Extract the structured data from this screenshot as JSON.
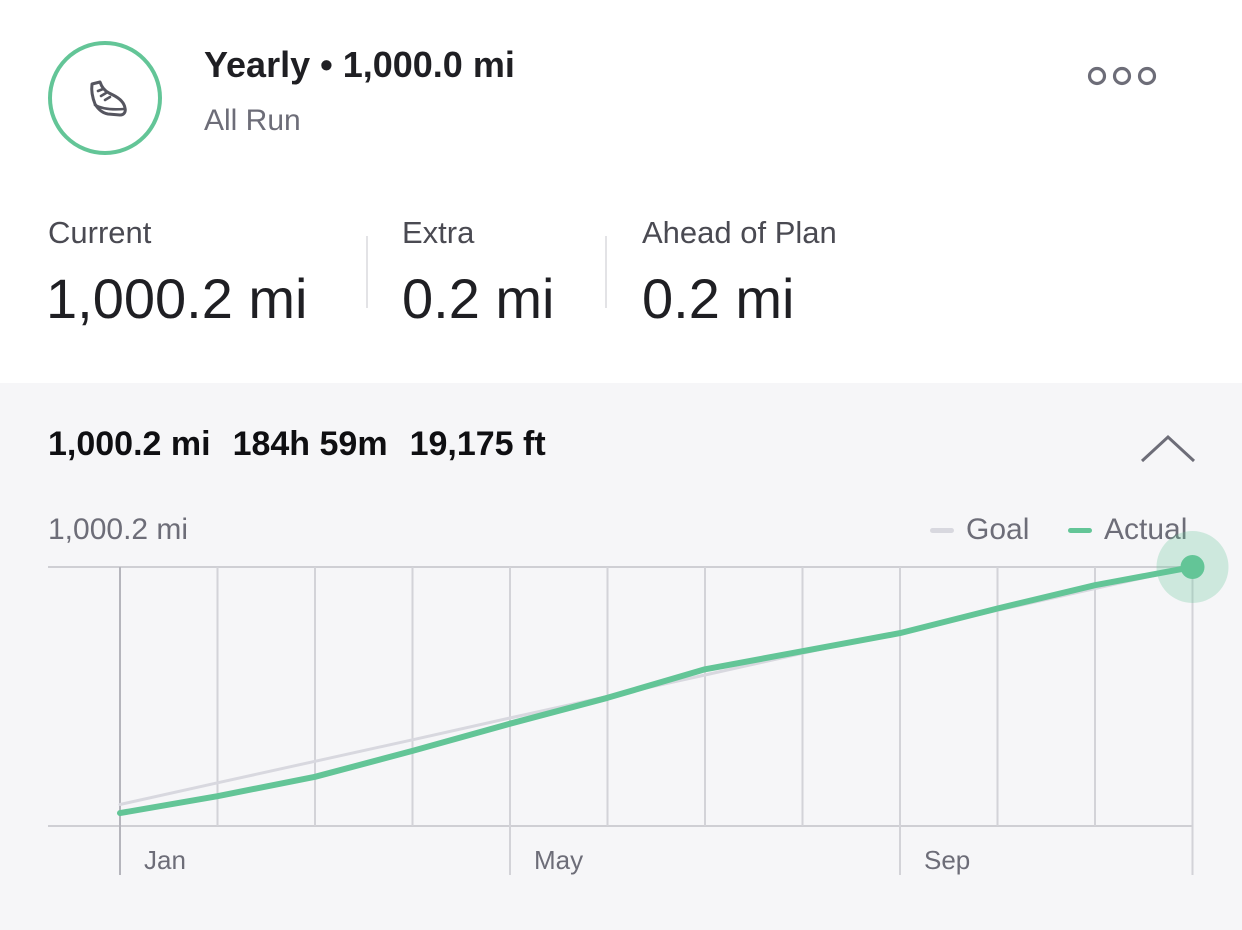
{
  "goal": {
    "title": "Yearly • 1,000.0 mi",
    "subtitle": "All Run",
    "icon": "running-shoe-icon",
    "accent_color": "#63c597"
  },
  "stats": [
    {
      "label": "Current",
      "value": "1,000.2 mi"
    },
    {
      "label": "Extra",
      "value": "0.2 mi"
    },
    {
      "label": "Ahead of Plan",
      "value": "0.2 mi"
    }
  ],
  "summary": {
    "distance": "1,000.2 mi",
    "time": "184h 59m",
    "elevation": "19,175 ft"
  },
  "chart_data": {
    "type": "line",
    "max_label": "1,000.2 mi",
    "ylim": [
      0,
      1000.2
    ],
    "x_ticks": [
      "Jan",
      "May",
      "Sep"
    ],
    "series": [
      {
        "name": "Goal",
        "color": "#d8d8df",
        "values": [
          83,
          167,
          250,
          333,
          417,
          500,
          583,
          667,
          750,
          833,
          917,
          1000
        ]
      },
      {
        "name": "Actual",
        "color": "#63c597",
        "values": [
          50,
          115,
          190,
          290,
          395,
          495,
          605,
          675,
          745,
          840,
          930,
          1000.2
        ]
      }
    ],
    "grid": true,
    "legend_position": "top-right"
  }
}
